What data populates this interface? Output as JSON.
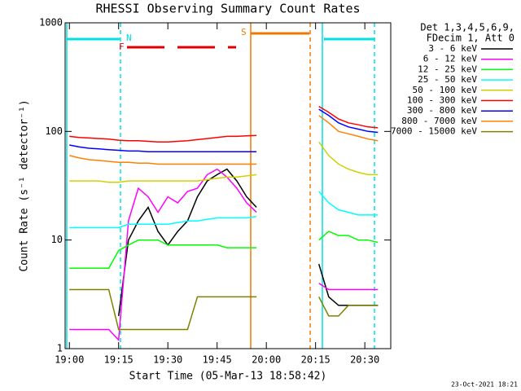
{
  "chart_data": {
    "type": "line",
    "title": "RHESSI Observing Summary Count Rates",
    "x_label": "Start Time (05-Mar-13 18:58:42)",
    "y_label": "Count Rate (s⁻¹ detector⁻¹)",
    "legend_header": [
      "Det 1,3,4,5,6,9,",
      "FDecim 1, Att 0"
    ],
    "footer": "23-Oct-2021 18:21",
    "flags": [
      {
        "text": "N",
        "color": "#00e0e0"
      },
      {
        "text": "F",
        "color": "#e00000"
      },
      {
        "text": "S",
        "color": "#f07800"
      }
    ],
    "log_y": true,
    "xlim": [
      "18:58:42",
      "20:37:54"
    ],
    "xticks": [
      "19:00",
      "19:15",
      "19:30",
      "19:45",
      "20:00",
      "20:15",
      "20:30"
    ],
    "ylim": [
      1,
      1000
    ],
    "yticks": [
      1,
      10,
      100,
      1000
    ],
    "x": [
      "19:00",
      "19:03",
      "19:06",
      "19:09",
      "19:12",
      "19:15",
      "19:18",
      "19:21",
      "19:24",
      "19:27",
      "19:30",
      "19:33",
      "19:36",
      "19:39",
      "19:42",
      "19:45",
      "19:48",
      "19:51",
      "19:54",
      "19:57",
      "20:06",
      "20:16",
      "20:19",
      "20:22",
      "20:25",
      "20:28",
      "20:31",
      "20:34"
    ],
    "series": [
      {
        "name": "3 - 6 keV",
        "color": "#000000",
        "values": [
          null,
          null,
          null,
          null,
          null,
          2,
          10,
          15,
          20,
          12,
          9,
          12,
          15,
          25,
          35,
          40,
          45,
          35,
          25,
          20,
          null,
          6,
          3,
          2.5,
          2.5,
          2.5,
          2.5,
          2.5
        ]
      },
      {
        "name": "6 - 12 keV",
        "color": "#ff00ff",
        "values": [
          1.5,
          1.5,
          1.5,
          1.5,
          1.5,
          1.2,
          15,
          30,
          25,
          18,
          25,
          22,
          28,
          30,
          40,
          45,
          38,
          30,
          22,
          18,
          null,
          4,
          3.5,
          3.5,
          3.5,
          3.5,
          3.5,
          3.5
        ]
      },
      {
        "name": "12 - 25 keV",
        "color": "#00ff00",
        "values": [
          5.5,
          5.5,
          5.5,
          5.5,
          5.5,
          8,
          9,
          10,
          10,
          10,
          9,
          9,
          9,
          9,
          9,
          9,
          8.5,
          8.5,
          8.5,
          8.5,
          null,
          10,
          12,
          11,
          11,
          10,
          10,
          9.5
        ]
      },
      {
        "name": "25 - 50 keV",
        "color": "#00ffff",
        "values": [
          13,
          13,
          13,
          13,
          13,
          13,
          14,
          14,
          14,
          14,
          14,
          14.5,
          15,
          15,
          15.5,
          16,
          16,
          16,
          16,
          16.5,
          null,
          28,
          22,
          19,
          18,
          17,
          17,
          17
        ]
      },
      {
        "name": "50 - 100 keV",
        "color": "#d0d000",
        "values": [
          35,
          35,
          35,
          35,
          34,
          34,
          35,
          35,
          35,
          35,
          35,
          35,
          35,
          35,
          36,
          37,
          38,
          38,
          39,
          40,
          null,
          80,
          60,
          50,
          45,
          42,
          40,
          40
        ]
      },
      {
        "name": "100 - 300 keV",
        "color": "#ff0000",
        "values": [
          90,
          88,
          87,
          86,
          85,
          83,
          82,
          82,
          81,
          80,
          80,
          81,
          82,
          84,
          86,
          88,
          90,
          90,
          91,
          92,
          null,
          170,
          150,
          130,
          120,
          115,
          110,
          108
        ]
      },
      {
        "name": "300 - 800 keV",
        "color": "#0000ff",
        "values": [
          75,
          72,
          70,
          69,
          68,
          67,
          66,
          66,
          65,
          65,
          65,
          65,
          65,
          65,
          65,
          65,
          65,
          65,
          65,
          65,
          null,
          160,
          140,
          120,
          110,
          105,
          100,
          98
        ]
      },
      {
        "name": "800 - 7000 keV",
        "color": "#ff8000",
        "values": [
          60,
          57,
          55,
          54,
          53,
          52,
          52,
          51,
          51,
          50,
          50,
          50,
          50,
          50,
          50,
          50,
          50,
          50,
          50,
          50,
          null,
          140,
          120,
          100,
          95,
          90,
          85,
          82
        ]
      },
      {
        "name": "7000 - 15000 keV",
        "color": "#808000",
        "values": [
          3.5,
          3.5,
          3.5,
          3.5,
          3.5,
          1.5,
          1.5,
          1.5,
          1.5,
          1.5,
          1.5,
          1.5,
          1.5,
          3,
          3,
          3,
          3,
          3,
          3,
          3,
          null,
          3,
          2,
          2,
          2.5,
          2.5,
          2.5,
          2.5
        ]
      }
    ]
  }
}
